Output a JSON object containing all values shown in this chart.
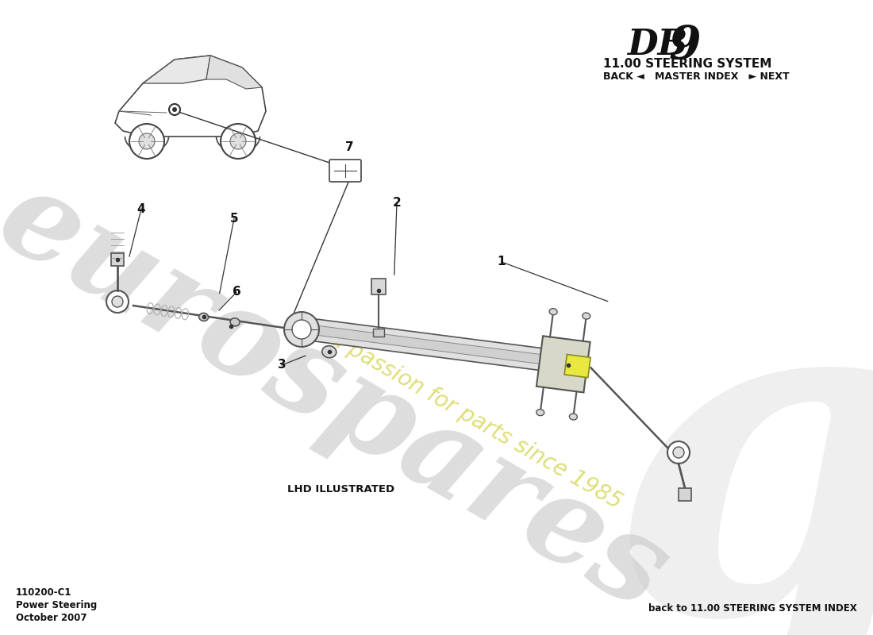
{
  "title_db": "DB",
  "title_9": "9",
  "subtitle": "11.00 STEERING SYSTEM",
  "nav_text": "BACK ◄   MASTER INDEX   ► NEXT",
  "part_label": "LHD ILLUSTRATED",
  "bottom_left_lines": [
    "110200-C1",
    "Power Steering",
    "October 2007"
  ],
  "bottom_right": "back to 11.00 STEERING SYSTEM INDEX",
  "watermark_line1": "eurospares",
  "watermark_line2": "a passion for parts since 1985",
  "bg_color": "#ffffff",
  "rack_color": "#e0e0e0",
  "rack_edge_color": "#555555",
  "line_color": "#555555",
  "label_color": "#111111",
  "yellow_color": "#e8e840"
}
